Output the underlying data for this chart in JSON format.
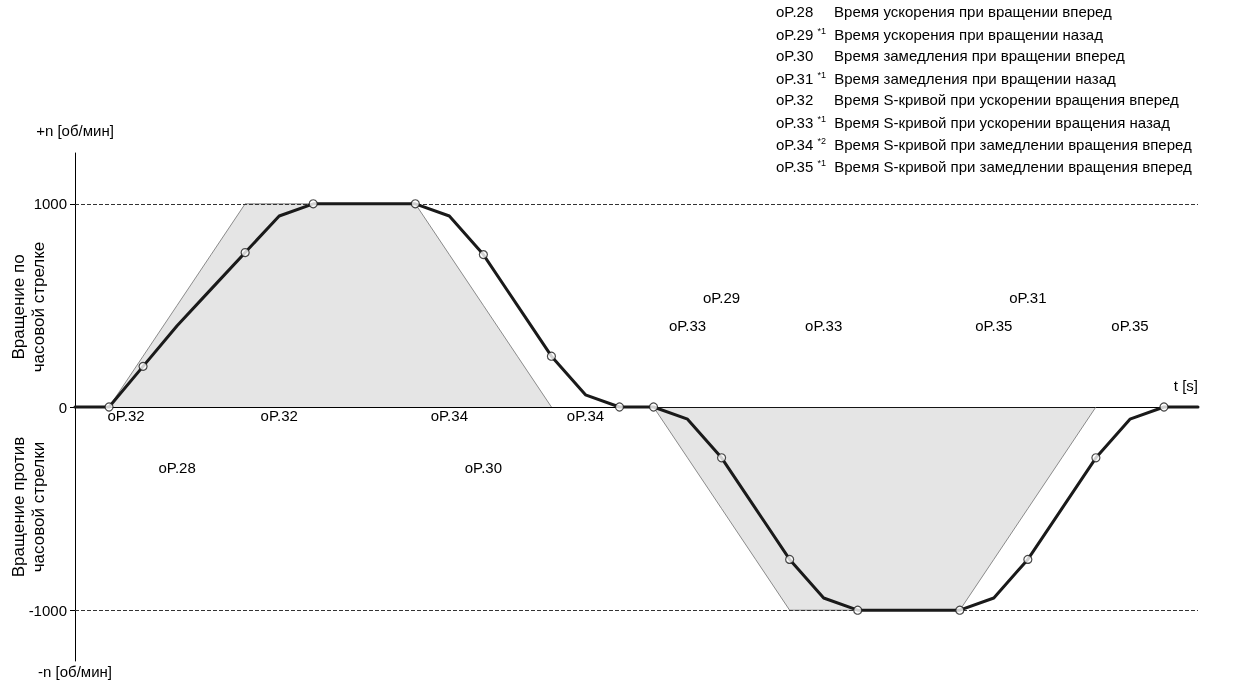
{
  "chart_data": {
    "type": "line",
    "xlabel": "t [s]",
    "ylabel": "+n [об/мин]",
    "categories": [
      null,
      null,
      null,
      null,
      null,
      null,
      null,
      null,
      null,
      null,
      null,
      null,
      null,
      null,
      null,
      null,
      null,
      null,
      null,
      null,
      null,
      null,
      null,
      null,
      null,
      null,
      null,
      null,
      null,
      null,
      null,
      null,
      null,
      null
    ],
    "ylim": [
      -1250,
      1250
    ],
    "yticks": [
      -1000,
      0,
      1000
    ],
    "tick_labels": "y",
    "grid": false,
    "series": [
      {
        "type": "area",
        "color": "#707070",
        "marker": "none",
        "values": [
          null,
          0,
          250,
          500,
          750,
          1000,
          1000,
          1000,
          1000,
          1000,
          1000,
          750,
          500,
          250,
          0,
          null,
          null,
          null,
          null,
          null,
          null,
          null,
          null,
          null,
          null,
          null,
          null,
          null,
          null,
          null,
          null,
          null,
          null,
          null
        ]
      },
      {
        "type": "area",
        "color": "#707070",
        "marker": "none",
        "values": [
          null,
          null,
          null,
          null,
          null,
          null,
          null,
          null,
          null,
          null,
          null,
          null,
          null,
          null,
          null,
          null,
          null,
          0,
          -250,
          -500,
          -750,
          -1000,
          -1000,
          -1000,
          -1000,
          -1000,
          -1000,
          -750,
          -500,
          -250,
          0,
          null,
          null,
          null
        ]
      },
      {
        "color": "#1a1a1a",
        "marker": "none",
        "values": [
          0,
          0,
          200,
          400,
          580,
          760,
          940,
          1000,
          1000,
          1000,
          1000,
          940,
          750,
          500,
          250,
          60,
          0,
          0,
          -60,
          -250,
          -500,
          -750,
          -940,
          -1000,
          -1000,
          -1000,
          -1000,
          -940,
          -750,
          -500,
          -250,
          -60,
          0,
          0
        ]
      },
      {
        "type": "scatter",
        "color": "#1a1a1a",
        "marker": "circle",
        "values": [
          null,
          0,
          200,
          null,
          null,
          760,
          null,
          1000,
          null,
          null,
          1000,
          null,
          750,
          null,
          250,
          null,
          0,
          0,
          null,
          -250,
          null,
          -750,
          null,
          -1000,
          null,
          null,
          -1000,
          null,
          -750,
          null,
          -250,
          null,
          0,
          null
        ]
      }
    ],
    "ref_lines": [
      {
        "axis": "y",
        "value": 1000,
        "line_style": "dashed"
      },
      {
        "axis": "y",
        "value": -1000,
        "line_style": "dashed"
      }
    ],
    "annotations": [
      "oP.28     Время ускорения при вращении вперед",
      "oP.29 $^{*1}$  Время ускорения при вращении назад",
      "oP.30     Время замедления при вращении вперед",
      "oP.31 $^{*1}$  Время замедления при вращении назад",
      "oP.32     Время S-кривой при ускорении вращения вперед",
      "oP.33 $^{*1}$  Время S-кривой при ускорении вращения назад",
      "oP.34 $^{*2}$  Время S-кривой при замедлении вращения вперед",
      "oP.35 $^{*1}$  Время S-кривой при замедлении вращения вперед",
      "Вращение по\nчасовой стрелке",
      "Вращение против\nчасовой стрелки",
      "-n [об/мин]",
      "oP.32",
      "oP.32",
      "oP.34",
      "oP.34",
      "oP.28",
      "oP.30",
      "oP.29",
      "oP.31",
      "oP.33",
      "oP.33",
      "oP.35",
      "oP.35"
    ]
  }
}
